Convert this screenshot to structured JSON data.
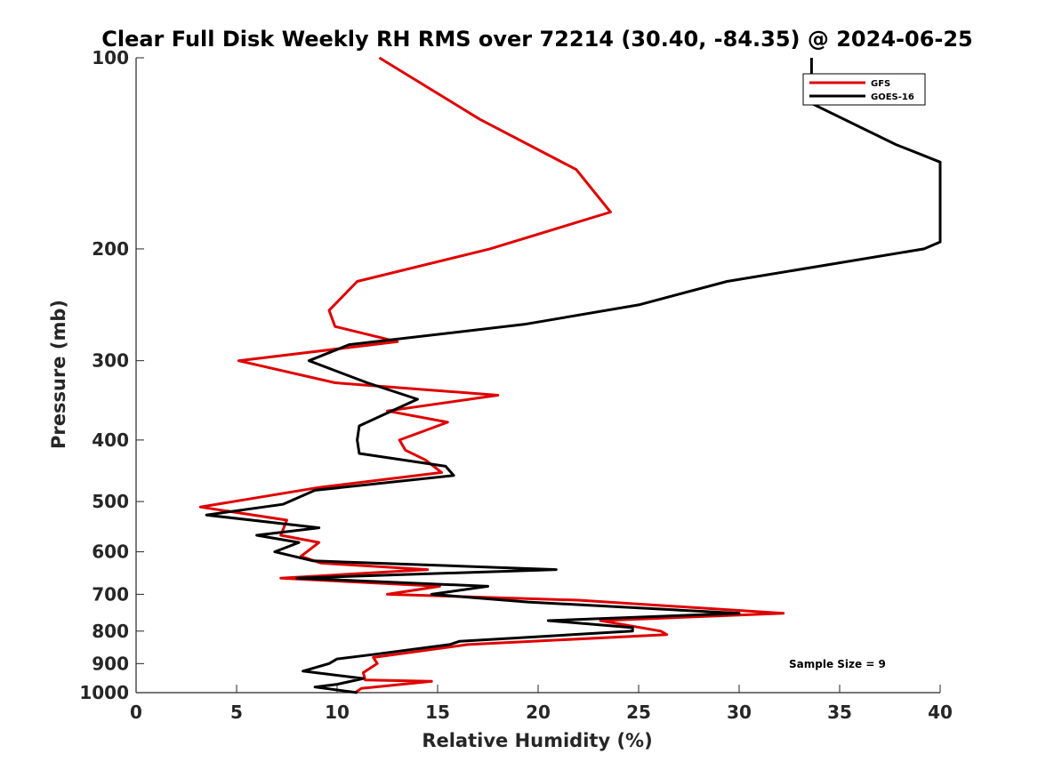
{
  "chart_data": {
    "type": "line",
    "title": "Clear Full Disk Weekly RH RMS over 72214 (30.40, -84.35) @ 2024-06-25",
    "xlabel": "Relative Humidity (%)",
    "ylabel": "Pressure (mb)",
    "xlim": [
      0,
      40
    ],
    "ylim": [
      100,
      1000
    ],
    "yscale": "log",
    "y_reversed": true,
    "xticks": [
      0,
      5,
      10,
      15,
      20,
      25,
      30,
      35,
      40
    ],
    "yticks": [
      100,
      200,
      300,
      400,
      500,
      600,
      700,
      800,
      900,
      1000
    ],
    "legend_position": "top-right",
    "annotation": "Sample Size = 9",
    "series": [
      {
        "name": "GFS",
        "color": "#e00000",
        "points": [
          [
            12.1,
            100
          ],
          [
            17.1,
            125
          ],
          [
            21.9,
            150
          ],
          [
            23.6,
            175
          ],
          [
            17.6,
            200
          ],
          [
            11.0,
            225
          ],
          [
            9.6,
            250
          ],
          [
            9.9,
            265
          ],
          [
            13.0,
            280
          ],
          [
            5.1,
            300
          ],
          [
            9.9,
            325
          ],
          [
            18.0,
            340
          ],
          [
            12.5,
            360
          ],
          [
            15.5,
            375
          ],
          [
            13.1,
            400
          ],
          [
            13.4,
            415
          ],
          [
            14.4,
            430
          ],
          [
            15.2,
            450
          ],
          [
            9.1,
            475
          ],
          [
            3.2,
            510
          ],
          [
            7.5,
            535
          ],
          [
            7.2,
            565
          ],
          [
            9.1,
            580
          ],
          [
            8.2,
            610
          ],
          [
            9.2,
            625
          ],
          [
            14.5,
            640
          ],
          [
            7.2,
            660
          ],
          [
            15.1,
            680
          ],
          [
            12.5,
            700
          ],
          [
            22.0,
            715
          ],
          [
            32.2,
            750
          ],
          [
            23.1,
            770
          ],
          [
            26.1,
            800
          ],
          [
            26.4,
            810
          ],
          [
            16.5,
            840
          ],
          [
            11.8,
            880
          ],
          [
            12.0,
            900
          ],
          [
            11.3,
            930
          ],
          [
            11.4,
            955
          ],
          [
            14.7,
            960
          ],
          [
            11.2,
            985
          ],
          [
            10.9,
            1000
          ]
        ]
      },
      {
        "name": "GOES-16",
        "color": "#000000",
        "points": [
          [
            33.6,
            100
          ],
          [
            33.6,
            118
          ],
          [
            37.8,
            137
          ],
          [
            40.0,
            146
          ],
          [
            40.0,
            195
          ],
          [
            39.2,
            200
          ],
          [
            29.4,
            225
          ],
          [
            25.0,
            245
          ],
          [
            19.3,
            263
          ],
          [
            10.6,
            283
          ],
          [
            8.6,
            300
          ],
          [
            11.5,
            325
          ],
          [
            14.0,
            345
          ],
          [
            12.3,
            365
          ],
          [
            11.1,
            380
          ],
          [
            11.0,
            400
          ],
          [
            11.1,
            420
          ],
          [
            15.4,
            440
          ],
          [
            15.8,
            455
          ],
          [
            8.9,
            480
          ],
          [
            7.3,
            505
          ],
          [
            3.5,
            525
          ],
          [
            9.1,
            550
          ],
          [
            6.0,
            565
          ],
          [
            8.1,
            580
          ],
          [
            6.9,
            600
          ],
          [
            8.8,
            620
          ],
          [
            20.9,
            640
          ],
          [
            8.0,
            660
          ],
          [
            17.5,
            680
          ],
          [
            14.7,
            700
          ],
          [
            19.5,
            720
          ],
          [
            30.0,
            750
          ],
          [
            20.5,
            770
          ],
          [
            24.7,
            790
          ],
          [
            24.7,
            800
          ],
          [
            16.1,
            830
          ],
          [
            15.6,
            840
          ],
          [
            11.9,
            870
          ],
          [
            10.0,
            885
          ],
          [
            9.6,
            900
          ],
          [
            8.3,
            925
          ],
          [
            11.3,
            950
          ],
          [
            10.0,
            970
          ],
          [
            8.9,
            980
          ],
          [
            11.0,
            1000
          ]
        ]
      }
    ]
  }
}
